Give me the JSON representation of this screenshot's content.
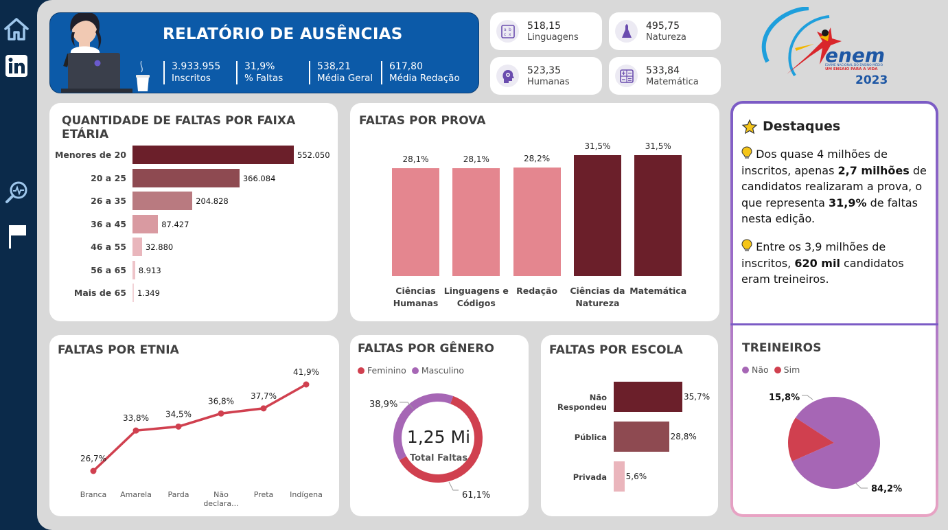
{
  "sidebar": {
    "icons": [
      "home-icon",
      "linkedin-icon",
      "search-analytics-icon",
      "flag-icon"
    ]
  },
  "header": {
    "title": "RELATÓRIO DE AUSÊNCIAS",
    "kpis": [
      {
        "value": "3.933.955",
        "label": "Inscritos"
      },
      {
        "value": "31,9%",
        "label": "% Faltas"
      },
      {
        "value": "538,21",
        "label": "Média Geral"
      },
      {
        "value": "617,80",
        "label": "Média Redação"
      }
    ]
  },
  "scores": [
    {
      "value": "518,15",
      "label": "Linguagens",
      "icon": "abc-icon"
    },
    {
      "value": "495,75",
      "label": "Natureza",
      "icon": "flask-icon"
    },
    {
      "value": "523,35",
      "label": "Humanas",
      "icon": "head-gear-icon"
    },
    {
      "value": "533,84",
      "label": "Matemática",
      "icon": "calculator-icon"
    }
  ],
  "logo": {
    "text": "enem",
    "subtitle1": "EXAME NACIONAL DO ENSINO MÉDIO",
    "subtitle2": "UM ENSAIO PARA A VIDA",
    "year": "2023"
  },
  "faixa_etaria": {
    "title": "QUANTIDADE DE FALTAS POR FAIXA ETÁRIA",
    "labels": [
      "552.050",
      "366.084",
      "204.828",
      "87.427",
      "32.880",
      "8.913",
      "1.349"
    ]
  },
  "por_prova": {
    "title": "FALTAS POR PROVA",
    "labels": [
      "28,1%",
      "28,1%",
      "28,2%",
      "31,5%",
      "31,5%"
    ]
  },
  "etnia": {
    "title": "FALTAS POR ETNIA",
    "labels": [
      "26,7%",
      "33,8%",
      "34,5%",
      "36,8%",
      "37,7%",
      "41,9%"
    ]
  },
  "genero": {
    "title": "FALTAS POR GÊNERO",
    "total_value": "1,25 Mi",
    "total_label": "Total Faltas",
    "legend": [
      "Feminino",
      "Masculino"
    ]
  },
  "escola": {
    "title": "FALTAS POR ESCOLA",
    "labels": [
      "35,7%",
      "28,8%",
      "5,6%"
    ]
  },
  "destaques": {
    "title": "Destaques",
    "p1_a": "Dos quase 4 milhões de inscritos, apenas ",
    "p1_b": "2,7 milhões",
    "p1_c": " de candidatos realizaram a prova, o que representa ",
    "p1_d": "31,9%",
    "p1_e": " de faltas nesta edição.",
    "p2_a": "Entre os 3,9 milhões de inscritos, ",
    "p2_b": "620 mil",
    "p2_c": " candidatos eram treineiros."
  },
  "treineiros": {
    "title": "TREINEIROS",
    "legend": [
      "Não",
      "Sim"
    ]
  },
  "colors": {
    "dark_red": "#6b1f2a",
    "mid_red": "#8e4a51",
    "rose": "#c28089",
    "pink": "#e4868f",
    "line_red": "#d0404f",
    "purple": "#a666b5",
    "navy": "#0b2a4a",
    "hero_blue": "#0c5aa8"
  },
  "chart_data": [
    {
      "type": "bar",
      "orientation": "horizontal",
      "title": "QUANTIDADE DE FALTAS POR FAIXA ETÁRIA",
      "categories": [
        "Menores de 20",
        "20 a 25",
        "26 a 35",
        "36 a 45",
        "46 a 55",
        "56 a 65",
        "Mais de 65"
      ],
      "values": [
        552050,
        366084,
        204828,
        87427,
        32880,
        8913,
        1349
      ]
    },
    {
      "type": "bar",
      "title": "FALTAS POR PROVA",
      "categories": [
        "Ciências Humanas",
        "Linguagens e Códigos",
        "Redação",
        "Ciências da Natureza",
        "Matemática"
      ],
      "values": [
        28.1,
        28.1,
        28.2,
        31.5,
        31.5
      ],
      "unit": "%"
    },
    {
      "type": "line",
      "title": "FALTAS POR ETNIA",
      "categories": [
        "Branca",
        "Amarela",
        "Parda",
        "Não declara...",
        "Preta",
        "Indígena"
      ],
      "values": [
        26.7,
        33.8,
        34.5,
        36.8,
        37.7,
        41.9
      ],
      "unit": "%"
    },
    {
      "type": "pie",
      "subtype": "donut",
      "title": "FALTAS POR GÊNERO",
      "categories": [
        "Feminino",
        "Masculino"
      ],
      "values": [
        61.1,
        38.9
      ],
      "labels": [
        "61,1%",
        "38,9%"
      ],
      "unit": "%"
    },
    {
      "type": "bar",
      "orientation": "horizontal",
      "title": "FALTAS POR ESCOLA",
      "categories": [
        "Não Respondeu",
        "Pública",
        "Privada"
      ],
      "values": [
        35.7,
        28.8,
        5.6
      ],
      "unit": "%"
    },
    {
      "type": "pie",
      "title": "TREINEIROS",
      "categories": [
        "Não",
        "Sim"
      ],
      "values": [
        84.2,
        15.8
      ],
      "labels": [
        "84,2%",
        "15,8%"
      ],
      "unit": "%"
    }
  ]
}
